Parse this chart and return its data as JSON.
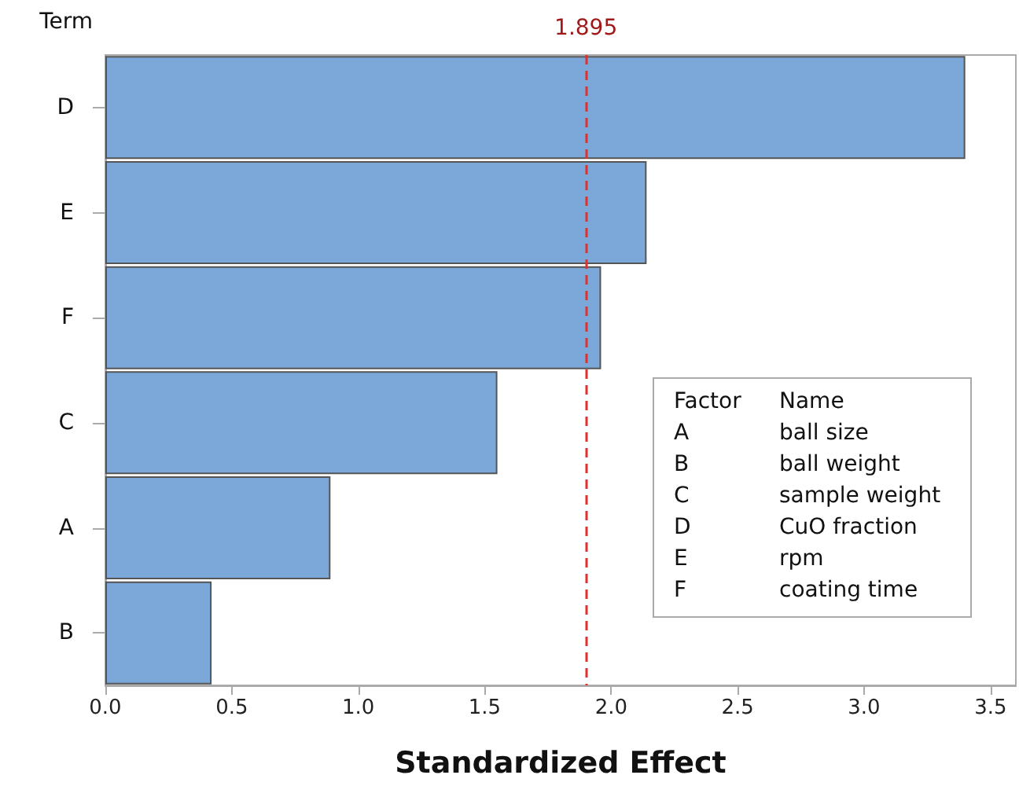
{
  "chart_data": {
    "type": "bar",
    "orientation": "horizontal",
    "categories": [
      "D",
      "E",
      "F",
      "C",
      "A",
      "B"
    ],
    "values": [
      3.4,
      2.14,
      1.96,
      1.55,
      0.89,
      0.42
    ],
    "color": "#7ba7d9",
    "xlabel": "Standardized Effect",
    "ylabel": "Term",
    "xlim": [
      0,
      3.6
    ],
    "xticks": [
      {
        "value": 0,
        "label": "0.0"
      },
      {
        "value": 0.5,
        "label": "0.5"
      },
      {
        "value": 1,
        "label": "1.0"
      },
      {
        "value": 1.5,
        "label": "1.5"
      },
      {
        "value": 2,
        "label": "2.0"
      },
      {
        "value": 2.5,
        "label": "2.5"
      },
      {
        "value": 3,
        "label": "3.0"
      },
      {
        "value": 3.5,
        "label": "3.5"
      }
    ],
    "ref_lines": [
      {
        "axis": "x",
        "value": 1.895,
        "label": "1.895",
        "color": "#e03030",
        "line_style": "dashed"
      }
    ],
    "annotations": [
      "Factor",
      "Name",
      "A",
      "ball size",
      "B",
      "ball weight",
      "C",
      "sample weight",
      "D",
      "CuO fraction",
      "E",
      "rpm",
      "F",
      "coating time"
    ],
    "grid": false
  }
}
